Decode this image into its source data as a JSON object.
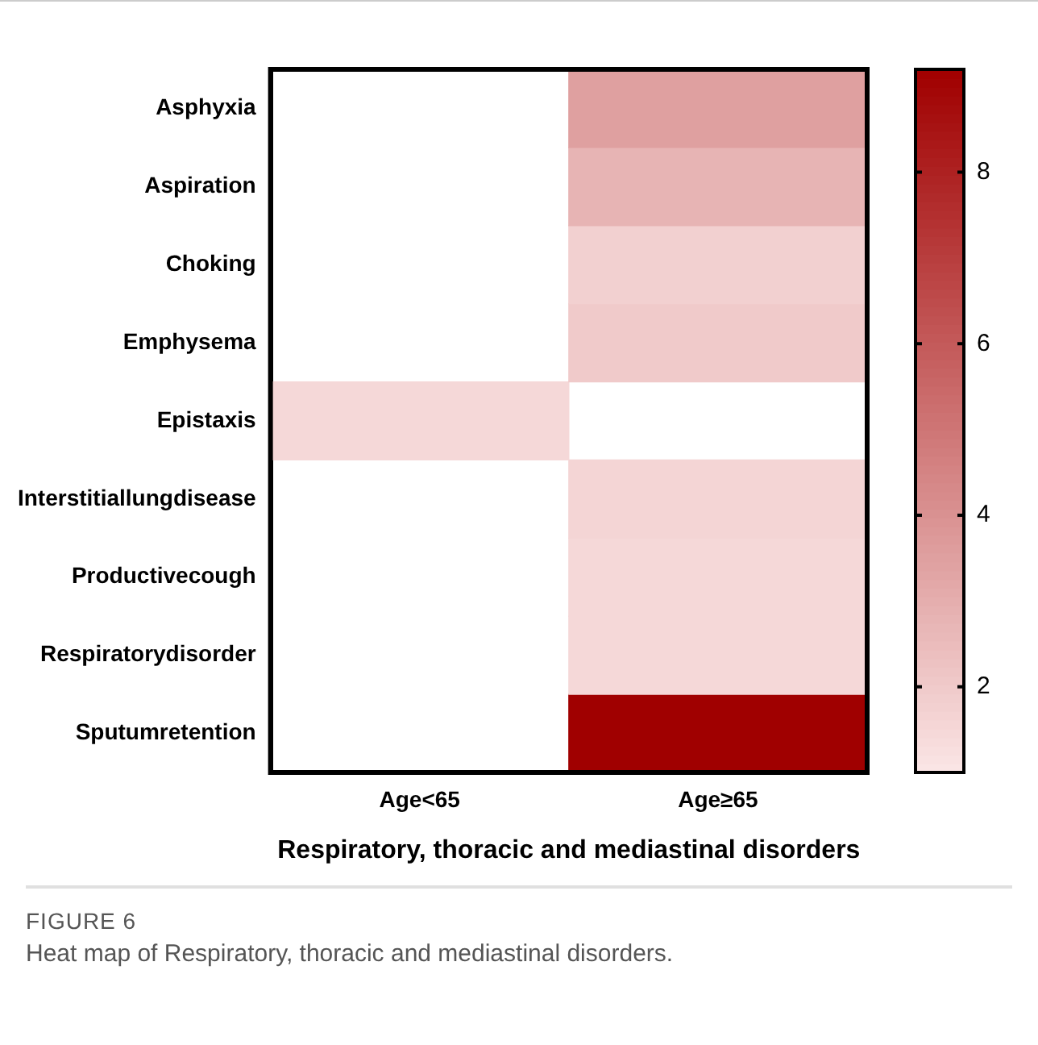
{
  "chart_data": {
    "type": "heatmap",
    "xlabel": "Respiratory, thoracic and mediastinal disorders",
    "categories": [
      "Age<65",
      "Age≥65"
    ],
    "y_categories": [
      "Asphyxia",
      "Aspiration",
      "Choking",
      "Emphysema",
      "Epistaxis",
      "Interstitiallungdisease",
      "Productivecough",
      "Respiratorydisorder",
      "Sputumretention"
    ],
    "cells": [
      [
        null,
        3.5
      ],
      [
        null,
        2.8
      ],
      [
        null,
        1.8
      ],
      [
        null,
        2.0
      ],
      [
        1.5,
        null
      ],
      [
        null,
        1.6
      ],
      [
        null,
        1.5
      ],
      [
        null,
        1.5
      ],
      [
        null,
        9.2
      ]
    ],
    "colors": [
      "#fbe6e6",
      "#a00000"
    ],
    "clim": [
      1,
      9.2
    ],
    "cticks": [
      2,
      4,
      6,
      8
    ],
    "annotations": [
      "FIGURE 6",
      "Heat map of Respiratory, thoracic and mediastinal disorders."
    ]
  }
}
